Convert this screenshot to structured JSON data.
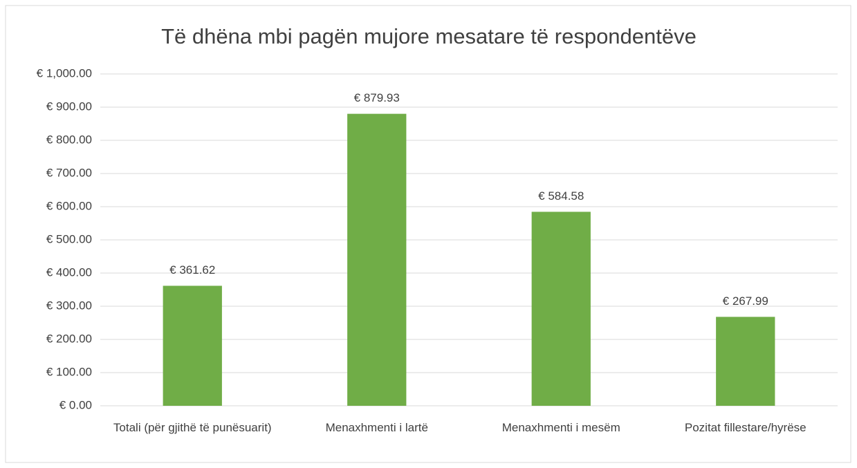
{
  "chart_data": {
    "type": "bar",
    "title": "Të dhëna mbi pagën mujore mesatare të respondentëve",
    "categories": [
      "Totali (për gjithë të punësuarit)",
      "Menaxhmenti i lartë",
      "Menaxhmenti i mesëm",
      "Pozitat fillestare/hyrëse"
    ],
    "values": [
      361.62,
      879.93,
      584.58,
      267.99
    ],
    "value_labels": [
      "€ 361.62",
      "€ 879.93",
      "€ 584.58",
      "€ 267.99"
    ],
    "color": "#70ad47",
    "ylim": [
      0,
      1000
    ],
    "yticks": [
      {
        "value": 0,
        "label": "€ 0.00"
      },
      {
        "value": 100,
        "label": "€ 100.00"
      },
      {
        "value": 200,
        "label": "€ 200.00"
      },
      {
        "value": 300,
        "label": "€ 300.00"
      },
      {
        "value": 400,
        "label": "€ 400.00"
      },
      {
        "value": 500,
        "label": "€ 500.00"
      },
      {
        "value": 600,
        "label": "€ 600.00"
      },
      {
        "value": 700,
        "label": "€ 700.00"
      },
      {
        "value": 800,
        "label": "€ 800.00"
      },
      {
        "value": 900,
        "label": "€ 900.00"
      },
      {
        "value": 1000,
        "label": "€ 1,000.00"
      }
    ],
    "grid": true
  }
}
